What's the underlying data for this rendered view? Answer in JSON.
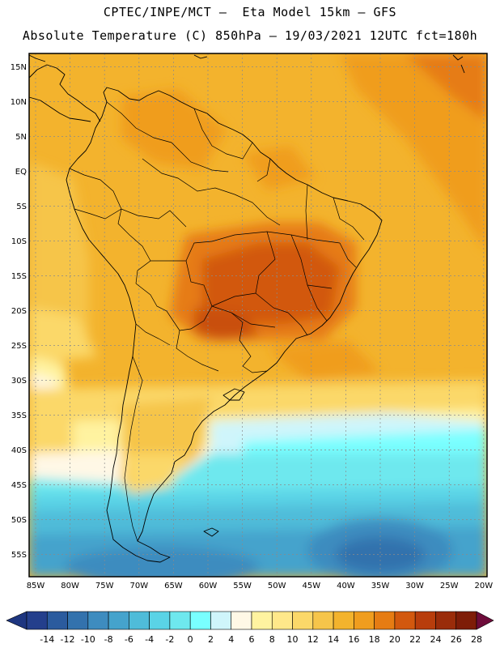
{
  "header": {
    "line1": "CPTEC/INPE/MCT –  Eta Model 15km – GFS",
    "line2": "Absolute Temperature (C) 850hPa – 19/03/2021 12UTC fct=180h"
  },
  "axes": {
    "lat_labels": [
      "15N",
      "10N",
      "5N",
      "EQ",
      "5S",
      "10S",
      "15S",
      "20S",
      "25S",
      "30S",
      "35S",
      "40S",
      "45S",
      "50S",
      "55S"
    ],
    "lon_labels": [
      "85W",
      "80W",
      "75W",
      "70W",
      "65W",
      "60W",
      "55W",
      "50W",
      "45W",
      "40W",
      "35W",
      "30W",
      "25W",
      "20W"
    ]
  },
  "colorbar": {
    "labels": [
      "-14",
      "-12",
      "-10",
      "-8",
      "-6",
      "-4",
      "-2",
      "0",
      "2",
      "4",
      "6",
      "8",
      "10",
      "12",
      "14",
      "16",
      "18",
      "20",
      "22",
      "24",
      "26",
      "28"
    ],
    "colors": [
      "#243f8c",
      "#2b5b9e",
      "#3372ad",
      "#3e8cbf",
      "#45a3cc",
      "#4fbcd9",
      "#5ad3e6",
      "#6ee8ee",
      "#79ffff",
      "#cff5fb",
      "#fff8e6",
      "#fff3a0",
      "#ffe88a",
      "#fbd869",
      "#f6c54a",
      "#f3b32d",
      "#f09d1e",
      "#e67c13",
      "#d2580e",
      "#b83d0c",
      "#9a2c0a",
      "#7e1d08"
    ],
    "low_arrow_color": "#1e3680",
    "high_arrow_color": "#6e0c3a"
  }
}
